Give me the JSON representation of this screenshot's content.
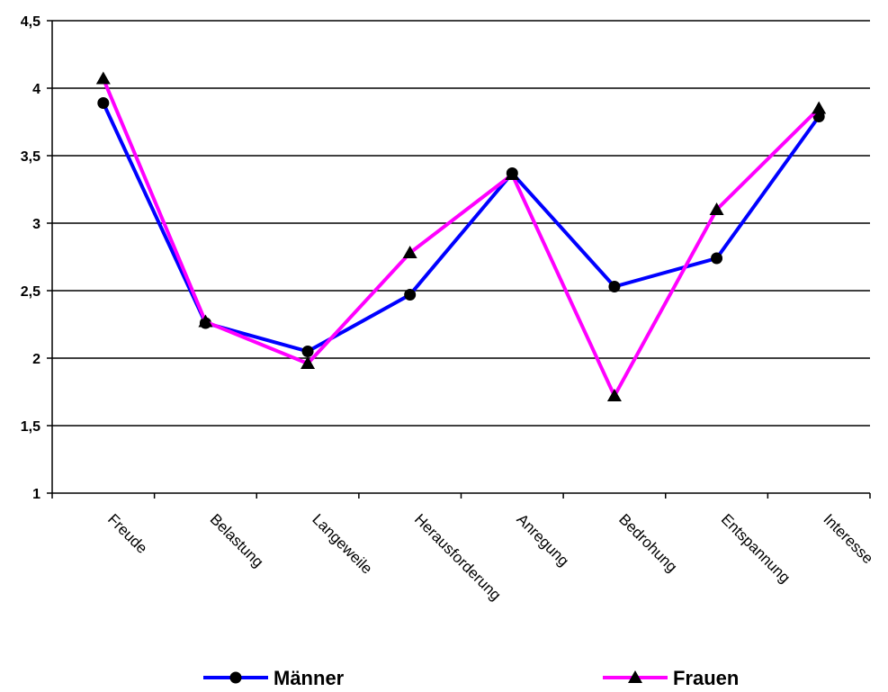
{
  "chart_data": {
    "type": "line",
    "categories": [
      "Freude",
      "Belastung",
      "Langeweile",
      "Herausforderung",
      "Anregung",
      "Bedrohung",
      "Entspannung",
      "Interesse"
    ],
    "series": [
      {
        "name": "Männer",
        "values": [
          3.89,
          2.26,
          2.05,
          2.47,
          3.37,
          2.53,
          2.74,
          3.79
        ],
        "color": "#0000ff",
        "marker": "circle"
      },
      {
        "name": "Frauen",
        "values": [
          4.07,
          2.27,
          1.96,
          2.78,
          3.36,
          1.72,
          3.1,
          3.85
        ],
        "color": "#ff00ff",
        "marker": "triangle"
      }
    ],
    "ylim": [
      1,
      4.5
    ],
    "yticks": [
      1,
      1.5,
      2,
      2.5,
      3,
      3.5,
      4,
      4.5
    ],
    "ytick_labels": [
      "1",
      "1,5",
      "2",
      "2,5",
      "3",
      "3,5",
      "4",
      "4,5"
    ],
    "grid": true,
    "legend_position": "bottom",
    "title": "",
    "xlabel": "",
    "ylabel": ""
  }
}
